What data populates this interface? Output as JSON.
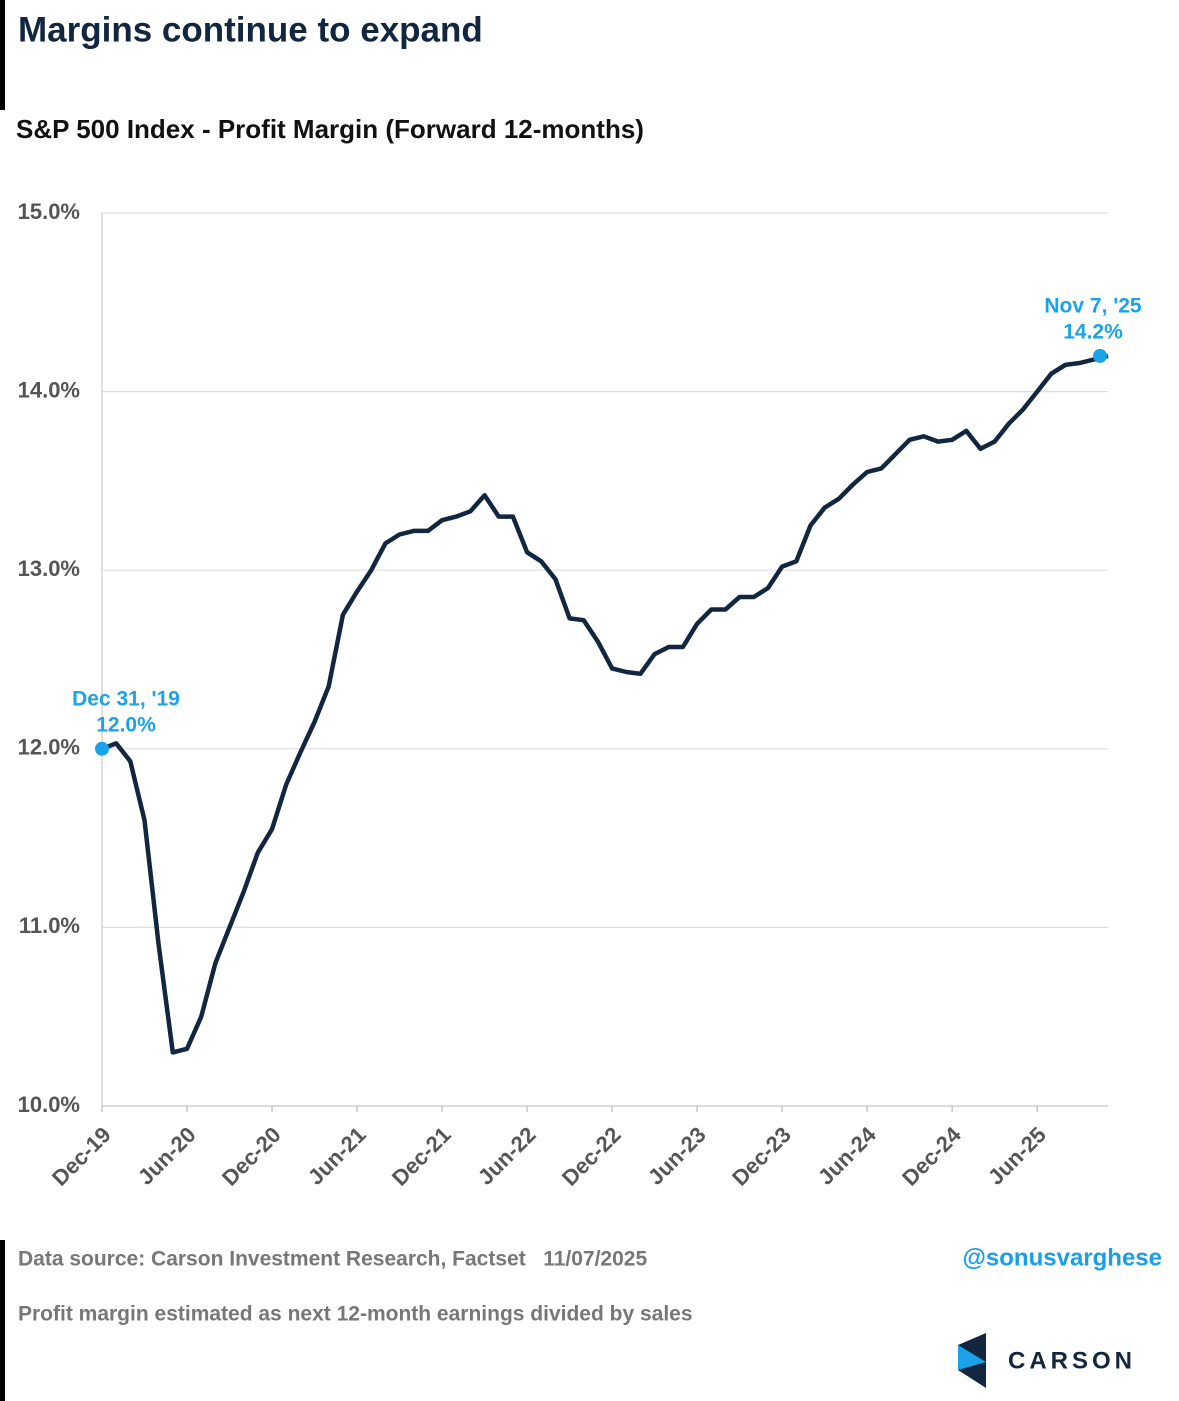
{
  "chart_data": {
    "type": "line",
    "title": "Margins continue to expand",
    "subtitle": "S&P 500 Index - Profit Margin (Forward 12-months)",
    "categories": [
      "Dec-19",
      null,
      null,
      null,
      null,
      null,
      "Jun-20",
      null,
      null,
      null,
      null,
      null,
      "Dec-20",
      null,
      null,
      null,
      null,
      null,
      "Jun-21",
      null,
      null,
      null,
      null,
      null,
      "Dec-21",
      null,
      null,
      null,
      null,
      null,
      "Jun-22",
      null,
      null,
      null,
      null,
      null,
      "Dec-22",
      null,
      null,
      null,
      null,
      null,
      "Jun-23",
      null,
      null,
      null,
      null,
      null,
      "Dec-23",
      null,
      null,
      null,
      null,
      null,
      "Jun-24",
      null,
      null,
      null,
      null,
      null,
      "Dec-24",
      null,
      null,
      null,
      null,
      null,
      "Jun-25",
      null,
      null,
      null,
      null,
      null
    ],
    "series": [
      {
        "name": "S&P 500 Index - Profit Margin",
        "color": "#12263f",
        "values": [
          12.0,
          12.03,
          11.93,
          11.6,
          10.9,
          10.3,
          10.32,
          10.5,
          10.8,
          11.0,
          11.2,
          11.42,
          11.55,
          11.8,
          11.98,
          12.15,
          12.35,
          12.75,
          12.88,
          13.0,
          13.15,
          13.2,
          13.22,
          13.22,
          13.28,
          13.3,
          13.33,
          13.42,
          13.3,
          13.3,
          13.1,
          13.05,
          12.95,
          12.73,
          12.72,
          12.6,
          12.45,
          12.43,
          12.42,
          12.53,
          12.57,
          12.57,
          12.7,
          12.78,
          12.78,
          12.85,
          12.85,
          12.9,
          13.02,
          13.05,
          13.25,
          13.35,
          13.4,
          13.48,
          13.55,
          13.57,
          13.65,
          13.73,
          13.75,
          13.72,
          13.73,
          13.78,
          13.68,
          13.72,
          13.82,
          13.9,
          14.0,
          14.1,
          14.15,
          14.16,
          14.18,
          14.2
        ],
        "value_labels": [
          "12.0%",
          null,
          null,
          null,
          null,
          null,
          null,
          null,
          null,
          null,
          null,
          null,
          null,
          null,
          null,
          null,
          null,
          null,
          null,
          null,
          null,
          null,
          null,
          null,
          null,
          null,
          null,
          null,
          null,
          null,
          null,
          null,
          null,
          null,
          null,
          null,
          null,
          null,
          null,
          null,
          null,
          null,
          null,
          null,
          null,
          null,
          null,
          null,
          null,
          null,
          null,
          null,
          null,
          null,
          null,
          null,
          null,
          null,
          null,
          null,
          null,
          null,
          null,
          null,
          null,
          null,
          null,
          null,
          null,
          null,
          null,
          "14.2%"
        ]
      }
    ],
    "point_color": "#1aa3e8",
    "annotations": [
      "Dec 31, '19",
      "Nov 7, '25"
    ],
    "ylim": [
      10,
      15
    ],
    "yticks": [
      {
        "value": 10,
        "label": "10.0%"
      },
      {
        "value": 11,
        "label": "11.0%"
      },
      {
        "value": 12,
        "label": "12.0%"
      },
      {
        "value": 13,
        "label": "13.0%"
      },
      {
        "value": 14,
        "label": "14.0%"
      },
      {
        "value": 15,
        "label": "15.0%"
      }
    ],
    "grid": true
  },
  "footer": {
    "source": "Data source: Carson Investment Research, Factset   11/07/2025",
    "handle": "@sonusvarghese",
    "note": "Profit margin estimated as next 12-month earnings divided by sales",
    "brand": "CARSON"
  }
}
